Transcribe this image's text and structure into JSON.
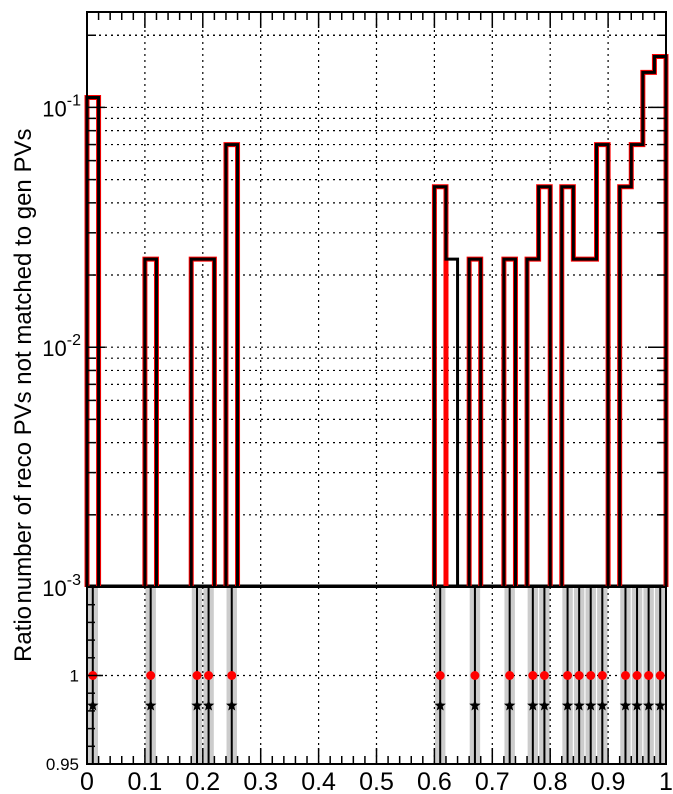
{
  "chart_data": [
    {
      "type": "histogram",
      "panel": "main",
      "ylabel": "number of reco PVs not matched to gen PVs",
      "yscale": "log",
      "ylim": [
        0.001,
        0.25
      ],
      "xlim": [
        0,
        1
      ],
      "grid": true,
      "bin_width": 0.02,
      "y_tick_labels": [
        "10^-1",
        "10^-2",
        "10^-3"
      ],
      "series": [
        {
          "color": "#000000",
          "bins": [
            {
              "x0": 0.0,
              "x1": 0.02,
              "y": 0.11
            },
            {
              "x0": 0.1,
              "x1": 0.12,
              "y": 0.0233
            },
            {
              "x0": 0.18,
              "x1": 0.2,
              "y": 0.0233
            },
            {
              "x0": 0.2,
              "x1": 0.22,
              "y": 0.0233
            },
            {
              "x0": 0.24,
              "x1": 0.26,
              "y": 0.07
            },
            {
              "x0": 0.6,
              "x1": 0.62,
              "y": 0.0467
            },
            {
              "x0": 0.62,
              "x1": 0.64,
              "y": 0.0233
            },
            {
              "x0": 0.66,
              "x1": 0.68,
              "y": 0.0233
            },
            {
              "x0": 0.72,
              "x1": 0.74,
              "y": 0.0233
            },
            {
              "x0": 0.76,
              "x1": 0.78,
              "y": 0.0233
            },
            {
              "x0": 0.78,
              "x1": 0.8,
              "y": 0.0467
            },
            {
              "x0": 0.82,
              "x1": 0.84,
              "y": 0.0467
            },
            {
              "x0": 0.84,
              "x1": 0.86,
              "y": 0.0233
            },
            {
              "x0": 0.86,
              "x1": 0.88,
              "y": 0.0233
            },
            {
              "x0": 0.88,
              "x1": 0.9,
              "y": 0.07
            },
            {
              "x0": 0.92,
              "x1": 0.94,
              "y": 0.0467
            },
            {
              "x0": 0.94,
              "x1": 0.96,
              "y": 0.07
            },
            {
              "x0": 0.96,
              "x1": 0.98,
              "y": 0.14
            },
            {
              "x0": 0.98,
              "x1": 1.0,
              "y": 0.163
            }
          ]
        },
        {
          "color": "#ff0000",
          "bins": [
            {
              "x0": 0.0,
              "x1": 0.02,
              "y": 0.11
            },
            {
              "x0": 0.1,
              "x1": 0.12,
              "y": 0.0233
            },
            {
              "x0": 0.18,
              "x1": 0.2,
              "y": 0.0233
            },
            {
              "x0": 0.2,
              "x1": 0.22,
              "y": 0.0233
            },
            {
              "x0": 0.24,
              "x1": 0.26,
              "y": 0.07
            },
            {
              "x0": 0.6,
              "x1": 0.62,
              "y": 0.0467
            },
            {
              "x0": 0.66,
              "x1": 0.68,
              "y": 0.0233
            },
            {
              "x0": 0.72,
              "x1": 0.74,
              "y": 0.0233
            },
            {
              "x0": 0.76,
              "x1": 0.78,
              "y": 0.0233
            },
            {
              "x0": 0.78,
              "x1": 0.8,
              "y": 0.0467
            },
            {
              "x0": 0.82,
              "x1": 0.84,
              "y": 0.0467
            },
            {
              "x0": 0.84,
              "x1": 0.86,
              "y": 0.0233
            },
            {
              "x0": 0.86,
              "x1": 0.88,
              "y": 0.0233
            },
            {
              "x0": 0.88,
              "x1": 0.9,
              "y": 0.07
            },
            {
              "x0": 0.92,
              "x1": 0.94,
              "y": 0.0467
            },
            {
              "x0": 0.94,
              "x1": 0.96,
              "y": 0.07
            },
            {
              "x0": 0.96,
              "x1": 0.98,
              "y": 0.14
            },
            {
              "x0": 0.98,
              "x1": 1.0,
              "y": 0.163
            }
          ]
        }
      ]
    },
    {
      "type": "scatter",
      "panel": "ratio",
      "ylabel": "Ratio",
      "ylim": [
        0.95,
        1.05
      ],
      "xlim": [
        0,
        1
      ],
      "x_tick_labels": [
        "0",
        "0.1",
        "0.2",
        "0.3",
        "0.4",
        "0.5",
        "0.6",
        "0.7",
        "0.8",
        "0.9",
        "1"
      ],
      "y_tick_labels": [
        "1",
        "0.95"
      ],
      "error_band_color": "#cccccc",
      "points_x": [
        0.01,
        0.11,
        0.19,
        0.21,
        0.25,
        0.61,
        0.67,
        0.73,
        0.77,
        0.79,
        0.83,
        0.85,
        0.87,
        0.89,
        0.93,
        0.95,
        0.97,
        0.99
      ],
      "series": [
        {
          "color": "#ff0000",
          "marker": "circle",
          "y": 1.0
        },
        {
          "color": "#000000",
          "marker": "star",
          "y": 0.983
        }
      ]
    }
  ]
}
